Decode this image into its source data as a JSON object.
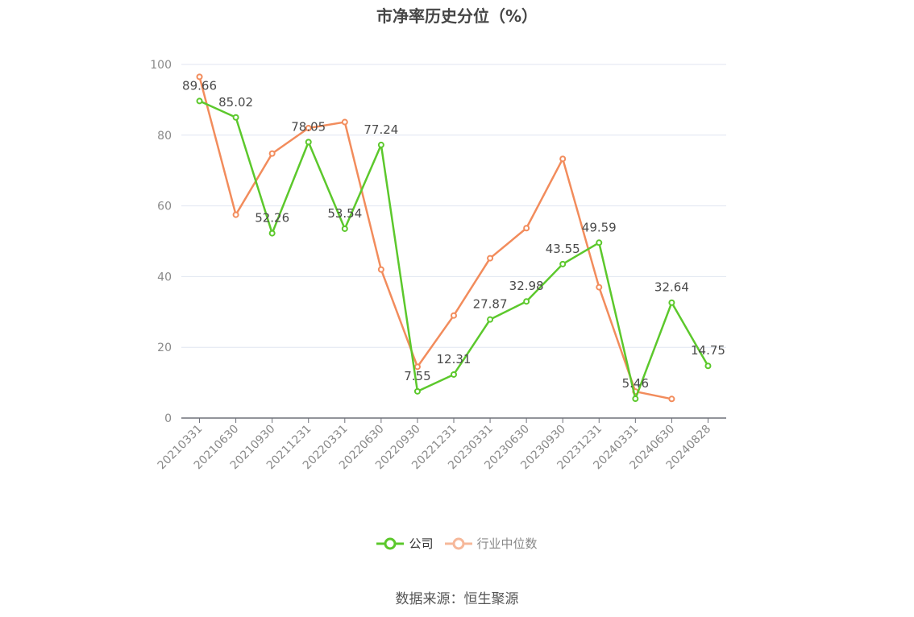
{
  "chart_data": {
    "type": "line",
    "title": "市净率历史分位（%）",
    "categories": [
      "20210331",
      "20210630",
      "20210930",
      "20211231",
      "20220331",
      "20220630",
      "20220930",
      "20221231",
      "20230331",
      "20230630",
      "20230930",
      "20231231",
      "20240331",
      "20240630",
      "20240828"
    ],
    "ylim": [
      0,
      100
    ],
    "yticks": [
      0,
      20,
      40,
      60,
      80,
      100
    ],
    "grid": true,
    "legend_position": "bottom",
    "series": [
      {
        "name": "公司",
        "color": "#5cc82c",
        "show_labels": true,
        "values": [
          89.66,
          85.02,
          52.26,
          78.05,
          53.54,
          77.24,
          7.55,
          12.31,
          27.87,
          32.98,
          43.55,
          49.59,
          5.46,
          32.64,
          14.75
        ]
      },
      {
        "name": "行业中位数",
        "color": "#f28c5c",
        "show_labels": false,
        "values": [
          96.5,
          57.5,
          74.8,
          82.0,
          83.7,
          42.0,
          14.5,
          29.0,
          45.2,
          53.7,
          73.3,
          37.0,
          7.5,
          5.4,
          null
        ]
      }
    ]
  },
  "source_text": "数据来源：恒生聚源"
}
